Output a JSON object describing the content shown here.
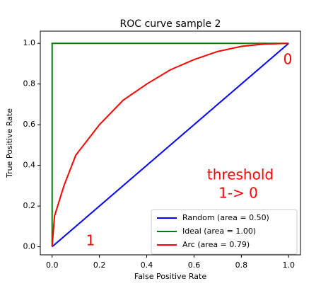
{
  "chart_data": {
    "type": "line",
    "title": "ROC curve sample 2",
    "x_label": "False Positive Rate",
    "y_label": "True Positive Rate",
    "xlim": [
      -0.05,
      1.05
    ],
    "ylim": [
      -0.04,
      1.06
    ],
    "xticks": [
      {
        "value": 0,
        "label": "0.0"
      },
      {
        "value": 0.2,
        "label": "0.2"
      },
      {
        "value": 0.4,
        "label": "0.4"
      },
      {
        "value": 0.6,
        "label": "0.6"
      },
      {
        "value": 0.8,
        "label": "0.8"
      },
      {
        "value": 1,
        "label": "1.0"
      }
    ],
    "yticks": [
      {
        "value": 0,
        "label": "0.0"
      },
      {
        "value": 0.2,
        "label": "0.2"
      },
      {
        "value": 0.4,
        "label": "0.4"
      },
      {
        "value": 0.6,
        "label": "0.6"
      },
      {
        "value": 0.8,
        "label": "0.8"
      },
      {
        "value": 1,
        "label": "1.0"
      }
    ],
    "legend": "lower right",
    "series": [
      {
        "name": "Random (area = 0.50)",
        "color": "#0000ff",
        "x": [
          0,
          1
        ],
        "values": [
          0,
          1
        ]
      },
      {
        "name": "Ideal (area = 1.00)",
        "color": "#008000",
        "x": [
          0,
          0,
          1
        ],
        "values": [
          0,
          1,
          1
        ]
      },
      {
        "name": "Arc (area = 0.79)",
        "color": "#ff0000",
        "x": [
          0,
          0.01,
          0.05,
          0.1,
          0.2,
          0.3,
          0.4,
          0.5,
          0.6,
          0.7,
          0.8,
          0.9,
          1
        ],
        "values": [
          0,
          0.15,
          0.3,
          0.45,
          0.6,
          0.72,
          0.8,
          0.87,
          0.92,
          0.96,
          0.985,
          0.997,
          1
        ]
      }
    ],
    "annotations": [
      "threshold",
      "1-> 0",
      "0",
      "1"
    ]
  }
}
